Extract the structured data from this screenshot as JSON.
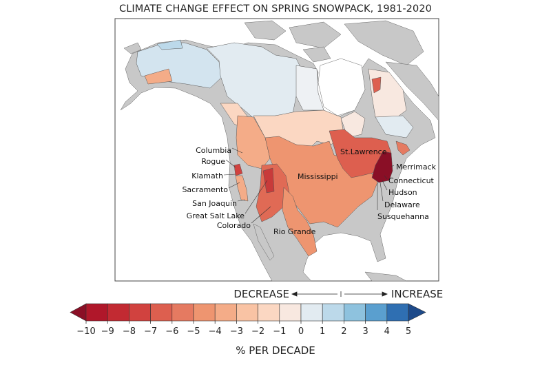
{
  "title": "CLIMATE CHANGE EFFECT ON SPRING SNOWPACK, 1981-2020",
  "map": {
    "land_color": "#c8c8c8",
    "basins": [
      {
        "name": "Columbia",
        "value": -4
      },
      {
        "name": "Rogue",
        "value": -7
      },
      {
        "name": "Klamath",
        "value": -7
      },
      {
        "name": "Sacramento",
        "value": -4
      },
      {
        "name": "San Joaquin",
        "value": -3
      },
      {
        "name": "Great Salt Lake",
        "value": -8
      },
      {
        "name": "Colorado",
        "value": -6
      },
      {
        "name": "Rio Grande",
        "value": -5
      },
      {
        "name": "Mississippi",
        "value": -5
      },
      {
        "name": "St.Lawrence",
        "value": -7
      },
      {
        "name": "Merrimack",
        "value": -10
      },
      {
        "name": "Connecticut",
        "value": -10
      },
      {
        "name": "Hudson",
        "value": -10
      },
      {
        "name": "Delaware",
        "value": -10
      },
      {
        "name": "Susquehanna",
        "value": -10
      }
    ]
  },
  "legend": {
    "decrease": "DECREASE",
    "increase": "INCREASE",
    "unit": "% PER DECADE",
    "ticks": [
      "−10",
      "−9",
      "−8",
      "−7",
      "−6",
      "−5",
      "−4",
      "−3",
      "−2",
      "−1",
      "0",
      "1",
      "2",
      "3",
      "4",
      "5"
    ],
    "colors": [
      "#b0172a",
      "#c22a32",
      "#d1423f",
      "#dd5f4f",
      "#e57a61",
      "#ee9570",
      "#f4ac88",
      "#f9c3a4",
      "#fbd7c2",
      "#f8e8e0",
      "#e2ebf1",
      "#bcd9ea",
      "#8ec2de",
      "#5a9fcf",
      "#2f6fb2"
    ],
    "under_color": "#8a0f26",
    "over_color": "#1d4a8a"
  }
}
